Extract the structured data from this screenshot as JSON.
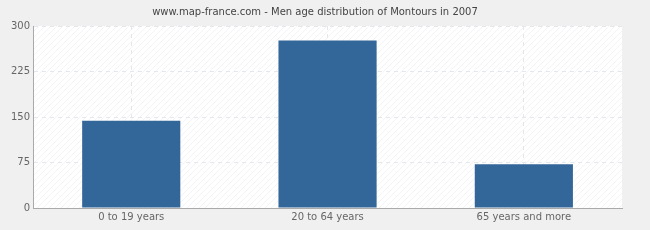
{
  "chart_data": {
    "type": "bar",
    "title": "www.map-france.com - Men age distribution of Montours in 2007",
    "categories": [
      "0 to 19 years",
      "20 to 64 years",
      "65 years and more"
    ],
    "values": [
      144,
      276,
      72
    ],
    "color": "#336699",
    "ylim": [
      0,
      300
    ],
    "yticks": [
      0,
      75,
      150,
      225,
      300
    ],
    "grid": true
  }
}
